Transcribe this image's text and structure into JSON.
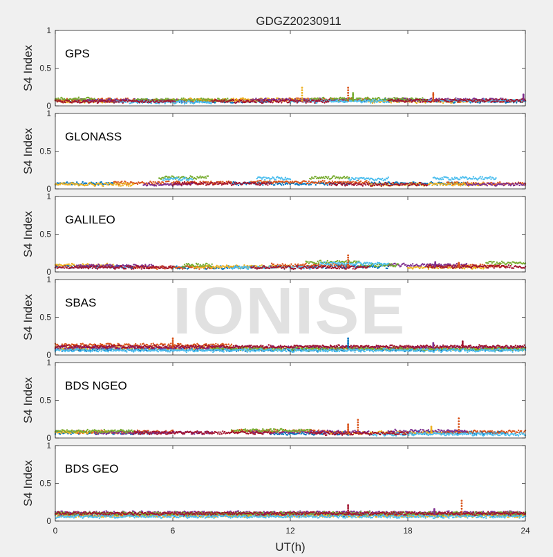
{
  "title": "GDGZ20230911",
  "xlabel": "UT(h)",
  "watermark": "IONISE",
  "colors": [
    "#0072BD",
    "#D95319",
    "#EDB120",
    "#7E2F8E",
    "#77AC30",
    "#4DBEEE",
    "#A2142F"
  ],
  "chart_data": [
    {
      "type": "scatter",
      "panel_label": "GPS",
      "ylabel": "S4 Index",
      "xlim": [
        0,
        24
      ],
      "ylim": [
        0,
        1
      ],
      "xticks": [
        0,
        6,
        12,
        18,
        24
      ],
      "yticks": [
        0,
        0.5,
        1
      ],
      "baseline_typical": 0.07,
      "series": [
        {
          "color": "#0072BD",
          "arcs": [
            [
              0,
              5,
              0.07
            ],
            [
              6,
              11,
              0.06
            ],
            [
              14,
              19,
              0.07
            ],
            [
              20,
              24,
              0.06
            ]
          ]
        },
        {
          "color": "#D95319",
          "arcs": [
            [
              0,
              4,
              0.08
            ],
            [
              5,
              10,
              0.07
            ],
            [
              11,
              16,
              0.08
            ],
            [
              19,
              24,
              0.07
            ]
          ]
        },
        {
          "color": "#EDB120",
          "arcs": [
            [
              0,
              3,
              0.06
            ],
            [
              6,
              13,
              0.08
            ],
            [
              16,
              21,
              0.06
            ]
          ]
        },
        {
          "color": "#7E2F8E",
          "arcs": [
            [
              1,
              7,
              0.07
            ],
            [
              10,
              15,
              0.08
            ],
            [
              17,
              23,
              0.08
            ]
          ]
        },
        {
          "color": "#77AC30",
          "arcs": [
            [
              0,
              2,
              0.09
            ],
            [
              4,
              9,
              0.08
            ],
            [
              13,
              19,
              0.09
            ]
          ]
        },
        {
          "color": "#4DBEEE",
          "arcs": [
            [
              3,
              8,
              0.05
            ],
            [
              12,
              17,
              0.06
            ],
            [
              19,
              24,
              0.07
            ]
          ]
        },
        {
          "color": "#A2142F",
          "arcs": [
            [
              0,
              6,
              0.06
            ],
            [
              8,
              14,
              0.06
            ],
            [
              17,
              24,
              0.07
            ]
          ]
        }
      ],
      "spikes": [
        {
          "x": 12.6,
          "y": 0.24,
          "color": "#EDB120"
        },
        {
          "x": 14.95,
          "y": 0.24,
          "color": "#D95319"
        },
        {
          "x": 15.2,
          "y": 0.17,
          "color": "#77AC30"
        },
        {
          "x": 19.3,
          "y": 0.17,
          "color": "#D95319"
        },
        {
          "x": 23.9,
          "y": 0.15,
          "color": "#7E2F8E"
        }
      ]
    },
    {
      "type": "scatter",
      "panel_label": "GLONASS",
      "ylabel": "S4 Index",
      "xlim": [
        0,
        24
      ],
      "ylim": [
        0,
        1
      ],
      "xticks": [
        0,
        6,
        12,
        18,
        24
      ],
      "yticks": [
        0,
        0.5,
        1
      ],
      "baseline_typical": 0.07,
      "series": [
        {
          "color": "#0072BD",
          "arcs": [
            [
              0,
              3,
              0.07
            ],
            [
              9,
              15,
              0.07
            ],
            [
              16,
              21,
              0.07
            ]
          ]
        },
        {
          "color": "#D95319",
          "arcs": [
            [
              3,
              9,
              0.08
            ],
            [
              10,
              16,
              0.09
            ],
            [
              20,
              24,
              0.07
            ]
          ]
        },
        {
          "color": "#EDB120",
          "arcs": [
            [
              0,
              4,
              0.06
            ],
            [
              16,
              22,
              0.06
            ]
          ]
        },
        {
          "color": "#7E2F8E",
          "arcs": [
            [
              4.5,
              7,
              0.06
            ],
            [
              21,
              24,
              0.06
            ]
          ]
        },
        {
          "color": "#77AC30",
          "arcs": [
            [
              5.3,
              7.8,
              0.15
            ],
            [
              13,
              15,
              0.15
            ]
          ]
        },
        {
          "color": "#4DBEEE",
          "arcs": [
            [
              5.5,
              7,
              0.13
            ],
            [
              10.3,
              12,
              0.14
            ],
            [
              15,
              17,
              0.13
            ],
            [
              19.3,
              22.5,
              0.14
            ]
          ]
        },
        {
          "color": "#A2142F",
          "arcs": [
            [
              6,
              11,
              0.07
            ],
            [
              14,
              19,
              0.06
            ]
          ]
        }
      ],
      "spikes": []
    },
    {
      "type": "scatter",
      "panel_label": "GALILEO",
      "ylabel": "S4 Index",
      "xlim": [
        0,
        24
      ],
      "ylim": [
        0,
        1
      ],
      "xticks": [
        0,
        6,
        12,
        18,
        24
      ],
      "yticks": [
        0,
        0.5,
        1
      ],
      "baseline_typical": 0.07,
      "series": [
        {
          "color": "#0072BD",
          "arcs": [
            [
              0,
              4,
              0.07
            ],
            [
              6,
              10,
              0.06
            ],
            [
              13,
              17,
              0.07
            ]
          ]
        },
        {
          "color": "#D95319",
          "arcs": [
            [
              4,
              8,
              0.06
            ],
            [
              11,
              15,
              0.09
            ],
            [
              19,
              23,
              0.08
            ]
          ]
        },
        {
          "color": "#EDB120",
          "arcs": [
            [
              0,
              3,
              0.09
            ],
            [
              7,
              12,
              0.07
            ],
            [
              18,
              22,
              0.06
            ]
          ]
        },
        {
          "color": "#7E2F8E",
          "arcs": [
            [
              1,
              5,
              0.08
            ],
            [
              17,
              21,
              0.09
            ]
          ]
        },
        {
          "color": "#77AC30",
          "arcs": [
            [
              6.5,
              8,
              0.09
            ],
            [
              12.8,
              15.5,
              0.13
            ],
            [
              15.5,
              17.5,
              0.09
            ],
            [
              22,
              24,
              0.12
            ]
          ]
        },
        {
          "color": "#4DBEEE",
          "arcs": [
            [
              9,
              13,
              0.06
            ],
            [
              13.5,
              17,
              0.11
            ]
          ]
        },
        {
          "color": "#A2142F",
          "arcs": [
            [
              0,
              6,
              0.06
            ],
            [
              10,
              16,
              0.06
            ],
            [
              19,
              24,
              0.07
            ]
          ]
        }
      ],
      "spikes": [
        {
          "x": 14.95,
          "y": 0.22,
          "color": "#D95319"
        },
        {
          "x": 19.4,
          "y": 0.13,
          "color": "#7E2F8E"
        },
        {
          "x": 20.6,
          "y": 0.12,
          "color": "#D95319"
        }
      ]
    },
    {
      "type": "scatter",
      "panel_label": "SBAS",
      "ylabel": "S4 Index",
      "xlim": [
        0,
        24
      ],
      "ylim": [
        0,
        1
      ],
      "xticks": [
        0,
        6,
        12,
        18,
        24
      ],
      "yticks": [
        0,
        0.5,
        1
      ],
      "baseline_typical": 0.1,
      "series": [
        {
          "color": "#0072BD",
          "arcs": [
            [
              0,
              24,
              0.07
            ]
          ]
        },
        {
          "color": "#D95319",
          "arcs": [
            [
              0,
              9,
              0.13
            ]
          ]
        },
        {
          "color": "#EDB120",
          "arcs": [
            [
              0,
              24,
              0.09
            ]
          ]
        },
        {
          "color": "#7E2F8E",
          "arcs": [
            [
              0,
              24,
              0.1
            ]
          ]
        },
        {
          "color": "#77AC30",
          "arcs": [
            [
              8,
              24,
              0.08
            ]
          ]
        },
        {
          "color": "#4DBEEE",
          "arcs": [
            [
              0,
              24,
              0.06
            ]
          ]
        },
        {
          "color": "#A2142F",
          "arcs": [
            [
              0,
              24,
              0.11
            ]
          ]
        }
      ],
      "spikes": [
        {
          "x": 6.0,
          "y": 0.22,
          "color": "#D95319"
        },
        {
          "x": 14.95,
          "y": 0.22,
          "color": "#0072BD"
        },
        {
          "x": 19.3,
          "y": 0.16,
          "color": "#7E2F8E"
        },
        {
          "x": 20.8,
          "y": 0.18,
          "color": "#A2142F"
        }
      ]
    },
    {
      "type": "scatter",
      "panel_label": "BDS NGEO",
      "ylabel": "S4 Index",
      "xlim": [
        0,
        24
      ],
      "ylim": [
        0,
        1
      ],
      "xticks": [
        0,
        6,
        12,
        18,
        24
      ],
      "yticks": [
        0,
        0.5,
        1
      ],
      "baseline_typical": 0.07,
      "series": [
        {
          "color": "#0072BD",
          "arcs": [
            [
              0,
              5,
              0.07
            ],
            [
              11,
              15,
              0.06
            ],
            [
              18,
              23,
              0.07
            ]
          ]
        },
        {
          "color": "#D95319",
          "arcs": [
            [
              1,
              6,
              0.08
            ],
            [
              9,
              14,
              0.09
            ],
            [
              20,
              24,
              0.08
            ]
          ]
        },
        {
          "color": "#EDB120",
          "arcs": [
            [
              0,
              3,
              0.08
            ],
            [
              14,
              20,
              0.07
            ]
          ]
        },
        {
          "color": "#7E2F8E",
          "arcs": [
            [
              2,
              8,
              0.07
            ],
            [
              10,
              16,
              0.08
            ],
            [
              17,
              21,
              0.09
            ]
          ]
        },
        {
          "color": "#77AC30",
          "arcs": [
            [
              0,
              4,
              0.09
            ],
            [
              9,
              13,
              0.1
            ]
          ]
        },
        {
          "color": "#4DBEEE",
          "arcs": [
            [
              16,
              24,
              0.05
            ]
          ]
        },
        {
          "color": "#A2142F",
          "arcs": [
            [
              4,
              11,
              0.07
            ],
            [
              13,
              18,
              0.06
            ]
          ]
        }
      ],
      "spikes": [
        {
          "x": 14.95,
          "y": 0.18,
          "color": "#D95319"
        },
        {
          "x": 15.45,
          "y": 0.24,
          "color": "#D95319"
        },
        {
          "x": 19.2,
          "y": 0.15,
          "color": "#EDB120"
        },
        {
          "x": 20.6,
          "y": 0.26,
          "color": "#D95319"
        }
      ]
    },
    {
      "type": "scatter",
      "panel_label": "BDS GEO",
      "ylabel": "S4 Index",
      "xlim": [
        0,
        24
      ],
      "ylim": [
        0,
        1
      ],
      "xticks": [
        0,
        6,
        12,
        18,
        24
      ],
      "yticks": [
        0,
        0.5,
        1
      ],
      "baseline_typical": 0.09,
      "series": [
        {
          "color": "#0072BD",
          "arcs": [
            [
              0,
              24,
              0.08
            ]
          ]
        },
        {
          "color": "#D95319",
          "arcs": [
            [
              0,
              24,
              0.09
            ]
          ]
        },
        {
          "color": "#EDB120",
          "arcs": [
            [
              0,
              24,
              0.07
            ]
          ]
        },
        {
          "color": "#7E2F8E",
          "arcs": [
            [
              0,
              24,
              0.11
            ]
          ]
        },
        {
          "color": "#77AC30",
          "arcs": [
            [
              0,
              24,
              0.1
            ]
          ]
        },
        {
          "color": "#4DBEEE",
          "arcs": [
            [
              0,
              24,
              0.06
            ]
          ]
        },
        {
          "color": "#A2142F",
          "arcs": [
            [
              0,
              24,
              0.1
            ]
          ]
        }
      ],
      "spikes": [
        {
          "x": 14.95,
          "y": 0.21,
          "color": "#A2142F"
        },
        {
          "x": 19.35,
          "y": 0.16,
          "color": "#7E2F8E"
        },
        {
          "x": 20.75,
          "y": 0.27,
          "color": "#D95319"
        }
      ]
    }
  ]
}
